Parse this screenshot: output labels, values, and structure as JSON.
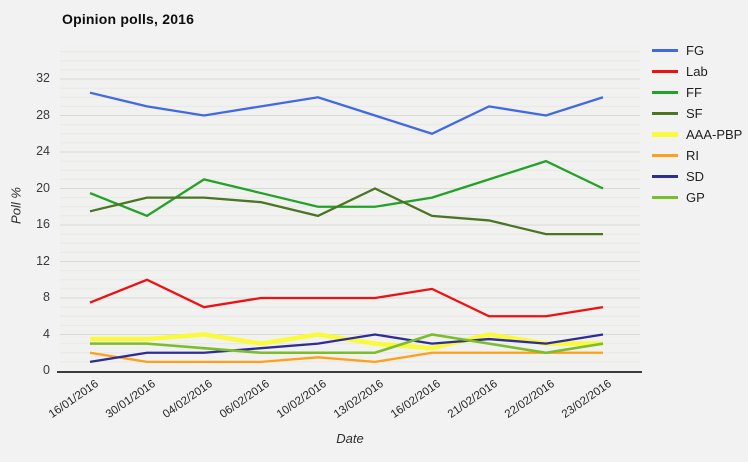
{
  "page": {
    "background": "#f2f2f2"
  },
  "chart_data": {
    "type": "line",
    "title": "Opinion polls, 2016",
    "xlabel": "Date",
    "ylabel": "Poll %",
    "ylim": [
      0,
      35.5
    ],
    "yticks": [
      0,
      4,
      8,
      12,
      16,
      20,
      24,
      28,
      32
    ],
    "grid": true,
    "legend_position": "right",
    "categories": [
      "16/01/2016",
      "30/01/2016",
      "04/02/2016",
      "06/02/2016",
      "10/02/2016",
      "13/02/2016",
      "16/02/2016",
      "21/02/2016",
      "22/02/2016",
      "23/02/2016"
    ],
    "series": [
      {
        "name": "FG",
        "color": "#4169e1",
        "line_width": 2.3,
        "values": [
          30.5,
          29,
          28,
          29,
          30,
          28,
          26,
          29,
          28,
          30
        ]
      },
      {
        "name": "Lab",
        "color": "#ee1111",
        "line_width": 2.3,
        "values": [
          7.5,
          10,
          7,
          8,
          8,
          8,
          9,
          6,
          6,
          7
        ]
      },
      {
        "name": "FF",
        "color": "#22a228",
        "line_width": 2.3,
        "values": [
          19.5,
          17,
          21,
          19.5,
          18,
          18,
          19,
          21,
          23,
          20
        ]
      },
      {
        "name": "SF",
        "color": "#4a7523",
        "line_width": 2.3,
        "values": [
          17.5,
          19,
          19,
          18.5,
          17,
          20,
          17,
          16.5,
          15,
          15
        ]
      },
      {
        "name": "AAA-PBP",
        "color": "#fafa3c",
        "line_width": 4.5,
        "values": [
          3.5,
          3.5,
          4,
          3,
          4,
          3,
          2.5,
          4,
          3,
          3
        ]
      },
      {
        "name": "RI",
        "color": "#ff9f1a",
        "line_width": 2.3,
        "values": [
          2,
          1,
          1,
          1,
          1.5,
          1,
          2,
          2,
          2,
          2
        ]
      },
      {
        "name": "SD",
        "color": "#2f2c96",
        "line_width": 2.3,
        "values": [
          1,
          2,
          2,
          2.5,
          3,
          4,
          3,
          3.5,
          3,
          4
        ]
      },
      {
        "name": "GP",
        "color": "#7cbd2c",
        "line_width": 2.6,
        "values": [
          3,
          3,
          2.5,
          2,
          2,
          2,
          4,
          3,
          2,
          3
        ]
      }
    ]
  }
}
